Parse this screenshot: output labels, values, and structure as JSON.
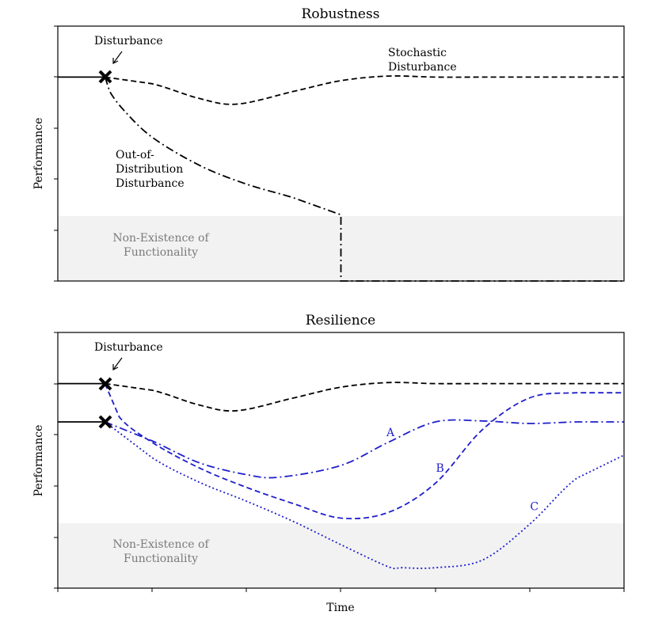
{
  "chart_data": [
    {
      "type": "line",
      "title": "Robustness",
      "xlabel": "",
      "ylabel": "Performance",
      "xlim": [
        0,
        12
      ],
      "ylim": [
        0,
        5
      ],
      "grid": false,
      "xticks_shown": false,
      "region": {
        "label": "Non-Existence of Functionality",
        "label_lines": [
          "Non-Existence of",
          "Functionality"
        ],
        "y_range": [
          0,
          1.25
        ],
        "color": "#f2f2f2"
      },
      "disturbance": {
        "label": "Disturbance",
        "x": 1.0,
        "y": 4.0
      },
      "series": [
        {
          "key": "baseline",
          "style": "solid",
          "color": "#000000",
          "x": [
            0,
            1.0
          ],
          "y": [
            4.0,
            4.0
          ]
        },
        {
          "key": "stochastic",
          "label": "Stochastic Disturbance",
          "label_lines": [
            "Stochastic",
            "Disturbance"
          ],
          "style": "dashed",
          "color": "#000000",
          "x": [
            1.0,
            2.0,
            3.0,
            3.8,
            5.0,
            6.0,
            7.0,
            8.0,
            9.0,
            10.0,
            11.0,
            12.0
          ],
          "y": [
            4.0,
            3.87,
            3.58,
            3.47,
            3.72,
            3.93,
            4.02,
            4.0,
            4.0,
            4.0,
            4.0,
            4.0
          ]
        },
        {
          "key": "ood",
          "label": "Out-of-Distribution Disturbance",
          "label_lines": [
            "Out-of-",
            "Distribution",
            "Disturbance"
          ],
          "style": "dashdot",
          "color": "#000000",
          "x": [
            1.0,
            1.1,
            1.4,
            2.0,
            3.0,
            4.0,
            5.0,
            6.0,
            6.0,
            6.3,
            8.0,
            10.0,
            12.0
          ],
          "y": [
            4.0,
            3.72,
            3.35,
            2.82,
            2.27,
            1.9,
            1.63,
            1.3,
            0.0,
            0.0,
            0.0,
            0.0,
            0.0
          ]
        }
      ]
    },
    {
      "type": "line",
      "title": "Resilience",
      "xlabel": "Time",
      "ylabel": "Performance",
      "xlim": [
        0,
        12
      ],
      "ylim": [
        0,
        5
      ],
      "grid": false,
      "xticks_shown": false,
      "region": {
        "label": "Non-Existence of Functionality",
        "label_lines": [
          "Non-Existence of",
          "Functionality"
        ],
        "y_range": [
          0,
          1.25
        ],
        "color": "#f2f2f2"
      },
      "disturbance": {
        "label": "Disturbance",
        "x": 1.0,
        "y": 4.0
      },
      "disturbance2": {
        "x": 1.0,
        "y": 3.25
      },
      "series": [
        {
          "key": "baseline",
          "style": "solid",
          "color": "#000000",
          "x": [
            0,
            1.0
          ],
          "y": [
            4.0,
            4.0
          ]
        },
        {
          "key": "baseline2",
          "style": "solid",
          "color": "#000000",
          "x": [
            0,
            1.0
          ],
          "y": [
            3.25,
            3.25
          ]
        },
        {
          "key": "stochastic",
          "style": "dashed",
          "color": "#000000",
          "x": [
            1.0,
            2.0,
            3.0,
            3.8,
            5.0,
            6.0,
            7.0,
            8.0,
            9.0,
            10.0,
            11.0,
            12.0
          ],
          "y": [
            4.0,
            3.87,
            3.58,
            3.47,
            3.72,
            3.93,
            4.02,
            4.0,
            4.0,
            4.0,
            4.0,
            4.0
          ]
        },
        {
          "key": "A",
          "label": "A",
          "label_at": [
            7.05,
            3.05
          ],
          "style": "dashdot",
          "color": "#1f1fcc",
          "x": [
            1.0,
            2.0,
            3.0,
            4.0,
            4.7,
            6.0,
            7.0,
            8.0,
            9.0,
            10.0,
            11.0,
            12.0
          ],
          "y": [
            3.25,
            2.88,
            2.45,
            2.22,
            2.17,
            2.4,
            2.85,
            3.25,
            3.27,
            3.22,
            3.25,
            3.25
          ]
        },
        {
          "key": "B",
          "label": "B",
          "label_at": [
            8.1,
            2.35
          ],
          "style": "dashed",
          "color": "#1f1fcc",
          "x": [
            1.0,
            1.3,
            2.0,
            3.0,
            4.0,
            5.0,
            6.0,
            7.0,
            8.0,
            9.0,
            10.0,
            11.0,
            12.0
          ],
          "y": [
            4.0,
            3.35,
            2.85,
            2.35,
            1.97,
            1.65,
            1.37,
            1.48,
            2.05,
            3.1,
            3.72,
            3.82,
            3.82
          ]
        },
        {
          "key": "C",
          "label": "C",
          "label_at": [
            10.1,
            1.6
          ],
          "style": "dotted",
          "color": "#1f1fcc",
          "x": [
            1.0,
            2.0,
            3.0,
            4.0,
            5.0,
            6.0,
            7.0,
            7.3,
            8.0,
            9.0,
            10.0,
            11.0,
            12.0
          ],
          "y": [
            3.25,
            2.55,
            2.07,
            1.7,
            1.3,
            0.85,
            0.42,
            0.4,
            0.4,
            0.55,
            1.25,
            2.15,
            2.6
          ]
        }
      ]
    }
  ]
}
